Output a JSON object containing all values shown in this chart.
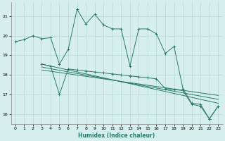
{
  "xlabel": "Humidex (Indice chaleur)",
  "xlim": [
    -0.5,
    23.5
  ],
  "ylim": [
    15.5,
    21.7
  ],
  "yticks": [
    16,
    17,
    18,
    19,
    20,
    21
  ],
  "xticks": [
    0,
    1,
    2,
    3,
    4,
    5,
    6,
    7,
    8,
    9,
    10,
    11,
    12,
    13,
    14,
    15,
    16,
    17,
    18,
    19,
    20,
    21,
    22,
    23
  ],
  "bg_color": "#d6eeee",
  "grid_color": "#b8d8d8",
  "line_color": "#2a7a6a",
  "series0_x": [
    0,
    1,
    2,
    3,
    4,
    5,
    6,
    7,
    8,
    9,
    10,
    11,
    12,
    13,
    14,
    15,
    16,
    17,
    18,
    19,
    20,
    21,
    22,
    23
  ],
  "series0_y": [
    19.7,
    19.8,
    20.0,
    19.85,
    19.9,
    18.55,
    19.3,
    21.35,
    20.6,
    21.1,
    20.55,
    20.35,
    20.35,
    18.45,
    20.35,
    20.35,
    20.1,
    19.1,
    19.45,
    17.3,
    16.55,
    16.5,
    15.75,
    16.4
  ],
  "series1_x": [
    3,
    4,
    5,
    6,
    7,
    8,
    9,
    10,
    11,
    12,
    13,
    14,
    15,
    16,
    17,
    18,
    19,
    20,
    21,
    22,
    23
  ],
  "series1_y": [
    18.55,
    18.45,
    17.0,
    18.3,
    18.25,
    18.2,
    18.15,
    18.1,
    18.05,
    18.0,
    17.95,
    17.9,
    17.85,
    17.8,
    17.3,
    17.25,
    17.2,
    16.5,
    16.4,
    15.75,
    16.4
  ],
  "trend_lines": [
    {
      "x": [
        3,
        23
      ],
      "y": [
        18.55,
        16.55
      ]
    },
    {
      "x": [
        3,
        23
      ],
      "y": [
        18.4,
        16.75
      ]
    },
    {
      "x": [
        3,
        23
      ],
      "y": [
        18.25,
        16.95
      ]
    }
  ]
}
